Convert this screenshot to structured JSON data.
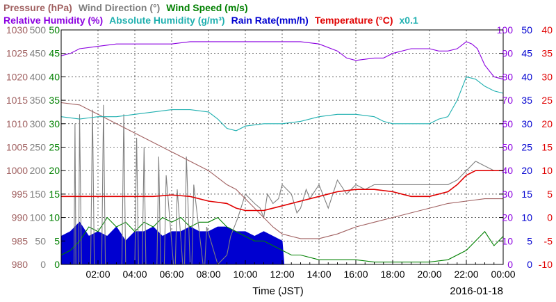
{
  "chart_data": {
    "type": "line",
    "xlabel": "Time (JST)",
    "date_label": "2016-01-18",
    "x_range_hours": [
      0,
      24
    ],
    "x_ticks": [
      {
        "h": 2,
        "label": "02:00"
      },
      {
        "h": 4,
        "label": "04:00"
      },
      {
        "h": 6,
        "label": "06:00"
      },
      {
        "h": 8,
        "label": "08:00"
      },
      {
        "h": 10,
        "label": "10:00"
      },
      {
        "h": 12,
        "label": "12:00"
      },
      {
        "h": 14,
        "label": "14:00"
      },
      {
        "h": 16,
        "label": "16:00"
      },
      {
        "h": 18,
        "label": "18:00"
      },
      {
        "h": 20,
        "label": "20:00"
      },
      {
        "h": 22,
        "label": "22:00"
      },
      {
        "h": 24,
        "label": "00:00"
      }
    ],
    "grid": true,
    "legend_row1": [
      {
        "name": "Pressure (hPa)",
        "color": "#a06060"
      },
      {
        "name": "Wind Direction (°)",
        "color": "#808080"
      },
      {
        "name": "Wind Speed (m/s)",
        "color": "#008000"
      }
    ],
    "legend_row2": [
      {
        "name": "Relative Humidity (%)",
        "color": "#8b00e0"
      },
      {
        "name": "Absolute Humidity (g/m³)",
        "color": "#20b0b0"
      },
      {
        "name": "Rain Rate(mm/h)",
        "color": "#0000d0"
      },
      {
        "name": "Temperature (°C)",
        "color": "#e00000"
      },
      {
        "name": "x0.1",
        "color": "#20b0b0"
      }
    ],
    "left_axes": [
      {
        "name": "pressure",
        "color": "#a06060",
        "ticks": [
          "980",
          "985",
          "990",
          "995",
          "1000",
          "1005",
          "1010",
          "1015",
          "1020",
          "1025",
          "1030"
        ]
      },
      {
        "name": "wind_direction",
        "color": "#808080",
        "ticks": [
          "0",
          "50",
          "100",
          "150",
          "200",
          "250",
          "300",
          "350",
          "400",
          "450",
          "500"
        ]
      },
      {
        "name": "wind_speed",
        "color": "#008000",
        "ticks": [
          "0",
          "5",
          "10",
          "15",
          "20",
          "25",
          "30",
          "35",
          "40",
          "45",
          "50"
        ]
      }
    ],
    "right_axes": [
      {
        "name": "humidity",
        "color": "#8b00e0",
        "ticks": [
          "0",
          "10",
          "20",
          "30",
          "40",
          "50",
          "60",
          "70",
          "80",
          "90",
          "100"
        ]
      },
      {
        "name": "rain_rate",
        "color": "#0000d0",
        "ticks": [
          "0",
          "5",
          "10",
          "15",
          "20",
          "25",
          "30",
          "35",
          "40",
          "45",
          "50"
        ]
      },
      {
        "name": "temperature",
        "color": "#e00000",
        "ticks": [
          "-10",
          "-5",
          "0",
          "5",
          "10",
          "15",
          "20",
          "25",
          "30",
          "35",
          "40"
        ]
      }
    ],
    "series": [
      {
        "name": "Pressure (hPa)",
        "color": "#a06060",
        "axis": "pressure",
        "range": [
          980,
          1030
        ],
        "x": [
          0,
          1,
          1.5,
          2,
          3,
          4,
          5,
          6,
          7,
          8,
          8.5,
          9,
          9.5,
          10,
          10.5,
          11,
          11.5,
          12,
          12.5,
          13,
          14,
          15,
          16,
          17,
          18,
          19,
          20,
          21,
          22,
          23,
          24
        ],
        "y": [
          1014.5,
          1014,
          1013,
          1012,
          1010,
          1008,
          1006,
          1004,
          1002,
          1000,
          998.5,
          997,
          996,
          994,
          992,
          990,
          988,
          986.5,
          986,
          985.5,
          985.5,
          986.5,
          988,
          989,
          990,
          991,
          992,
          993,
          993.5,
          994,
          994
        ]
      },
      {
        "name": "Relative Humidity (%)",
        "color": "#8b00e0",
        "axis": "humidity",
        "range": [
          0,
          100
        ],
        "x": [
          0,
          0.5,
          1,
          2,
          3,
          4,
          5,
          6,
          7,
          8,
          9,
          10,
          11,
          12,
          13,
          14,
          15,
          15.5,
          16,
          17,
          17.5,
          18,
          19,
          20,
          20.5,
          21,
          21.5,
          22,
          22.3,
          22.6,
          23,
          23.5,
          24
        ],
        "y": [
          89,
          90,
          92,
          93,
          94,
          94,
          94,
          94,
          95,
          95,
          95,
          95,
          95,
          95,
          95,
          94,
          91,
          88,
          87,
          88,
          88,
          90,
          92,
          92,
          91,
          91,
          92,
          95,
          94,
          92,
          85,
          80,
          79
        ]
      },
      {
        "name": "Absolute Humidity (g/m³)",
        "color": "#20b0b0",
        "axis": "humidity",
        "range": [
          0,
          100
        ],
        "x": [
          0,
          1,
          2,
          3,
          4,
          5,
          6,
          7,
          8,
          8.5,
          9,
          9.5,
          10,
          11,
          12,
          13,
          14,
          15,
          16,
          17,
          17.5,
          18,
          19,
          20,
          20.5,
          21,
          21.5,
          22,
          22.5,
          23,
          23.5,
          24
        ],
        "y": [
          63,
          62,
          63,
          63,
          64,
          65,
          66,
          66,
          65,
          62,
          58,
          57,
          59,
          60,
          60,
          61,
          63,
          64,
          64,
          63,
          61,
          60,
          60,
          60,
          62,
          63,
          70,
          80,
          79,
          76,
          74,
          73
        ]
      },
      {
        "name": "Temperature (°C)",
        "color": "#e00000",
        "axis": "temperature",
        "range": [
          -10,
          40
        ],
        "x": [
          0,
          1,
          2,
          3,
          4,
          5,
          6,
          7,
          8,
          9,
          9.5,
          10,
          11,
          12,
          13,
          14,
          15,
          16,
          17,
          18,
          19,
          20,
          21,
          21.5,
          22,
          22.5,
          23,
          24
        ],
        "y": [
          4.5,
          4.5,
          4.5,
          4.5,
          4.5,
          4.5,
          4.8,
          4.5,
          3.5,
          3.0,
          2.0,
          1.5,
          1.5,
          2.5,
          3.5,
          4.5,
          5.5,
          6.0,
          6.0,
          5.5,
          4.5,
          4.5,
          5.5,
          7.0,
          9.0,
          10.0,
          10.0,
          10.0
        ]
      },
      {
        "name": "Wind Direction (°)",
        "color": "#808080",
        "axis": "wind_direction",
        "range": [
          0,
          500
        ],
        "x": [
          0,
          0.7,
          0.75,
          0.8,
          0.95,
          1.0,
          1.1,
          1.6,
          1.7,
          1.8,
          2.2,
          2.3,
          2.4,
          3.3,
          3.4,
          3.5,
          4.0,
          4.1,
          4.2,
          4.4,
          4.5,
          4.6,
          5.2,
          5.3,
          5.4,
          5.6,
          5.7,
          6.1,
          6.2,
          6.3,
          6.6,
          6.7,
          6.8,
          7.0,
          7.1,
          7.2,
          7.7,
          7.8,
          7.9,
          8.5,
          9.0,
          9.2,
          9.6,
          10.0,
          10.5,
          10.8,
          11.0,
          11.2,
          11.5,
          11.8,
          12.0,
          12.5,
          12.8,
          13.0,
          13.3,
          13.5,
          14.0,
          14.5,
          15.0,
          15.5,
          16.0,
          16.5,
          17.0,
          18.0,
          19.0,
          20.0,
          21.0,
          21.5,
          22.0,
          22.5,
          23.0,
          23.5,
          24.0
        ],
        "y": [
          0,
          0,
          300,
          0,
          0,
          320,
          0,
          0,
          330,
          0,
          0,
          340,
          0,
          0,
          320,
          0,
          0,
          270,
          0,
          0,
          250,
          0,
          0,
          230,
          0,
          0,
          190,
          0,
          0,
          160,
          0,
          0,
          230,
          0,
          0,
          170,
          0,
          0,
          80,
          0,
          20,
          60,
          100,
          150,
          130,
          120,
          100,
          150,
          130,
          140,
          170,
          150,
          110,
          120,
          160,
          140,
          170,
          120,
          180,
          150,
          170,
          160,
          170,
          170,
          170,
          170,
          170,
          180,
          200,
          220,
          210,
          200,
          200
        ]
      },
      {
        "name": "Wind Speed (m/s)",
        "color": "#008000",
        "axis": "wind_speed",
        "range": [
          0,
          50
        ],
        "x": [
          0,
          0.5,
          1,
          1.5,
          2,
          2.5,
          3,
          3.5,
          4,
          4.5,
          5,
          5.5,
          6,
          6.5,
          7,
          7.5,
          8,
          8.5,
          9,
          9.5,
          10,
          10.5,
          11,
          11.5,
          12,
          12.5,
          13,
          14,
          15,
          16,
          17,
          18,
          19,
          20,
          21,
          22,
          22.5,
          23,
          23.5,
          24
        ],
        "y": [
          2,
          3,
          5,
          8,
          7,
          10,
          8,
          9,
          7,
          9,
          8,
          10,
          9,
          10,
          8,
          9,
          9,
          10,
          8,
          7,
          6,
          5,
          5,
          4,
          3,
          2,
          2,
          1,
          1,
          1,
          0.5,
          0.5,
          0.5,
          0.5,
          1,
          3,
          5,
          7,
          4,
          6
        ]
      },
      {
        "name": "Rain Rate(mm/h)",
        "color": "#0000d0",
        "axis": "rain_rate",
        "range": [
          0,
          50
        ],
        "render": "area",
        "x": [
          0,
          0.5,
          1,
          1.5,
          2,
          2.5,
          3,
          3.5,
          4,
          4.5,
          5,
          5.5,
          6,
          6.5,
          7,
          7.5,
          8,
          8.5,
          9,
          9.5,
          10,
          10.5,
          11,
          11.5,
          12,
          12.1
        ],
        "y": [
          6,
          7,
          9,
          6,
          7,
          6,
          8,
          5,
          7,
          7,
          8,
          6,
          7,
          7,
          8,
          7,
          7,
          8,
          8,
          7,
          7,
          6,
          7,
          6,
          5,
          0
        ]
      }
    ]
  }
}
